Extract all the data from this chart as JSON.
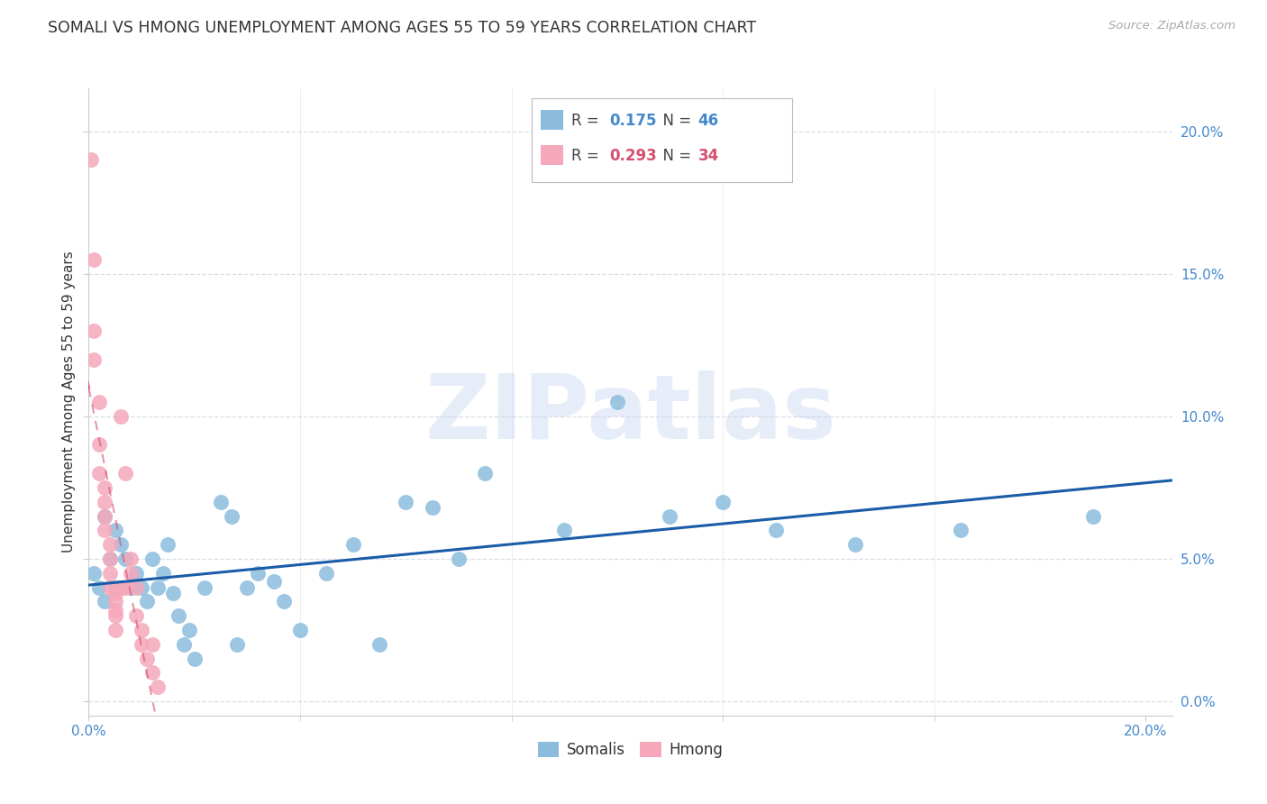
{
  "title": "SOMALI VS HMONG UNEMPLOYMENT AMONG AGES 55 TO 59 YEARS CORRELATION CHART",
  "source": "Source: ZipAtlas.com",
  "ylabel": "Unemployment Among Ages 55 to 59 years",
  "somali_R": 0.175,
  "somali_N": 46,
  "hmong_R": 0.293,
  "hmong_N": 34,
  "somali_color": "#8bbcdd",
  "hmong_color": "#f5a8ba",
  "trend_somali_color": "#1a5ca8",
  "trend_hmong_color": "#d45070",
  "xlim": [
    0.0,
    0.205
  ],
  "ylim": [
    -0.005,
    0.215
  ],
  "yticks": [
    0.0,
    0.05,
    0.1,
    0.15,
    0.2
  ],
  "somali_x": [
    0.001,
    0.002,
    0.003,
    0.003,
    0.004,
    0.005,
    0.005,
    0.006,
    0.007,
    0.008,
    0.009,
    0.01,
    0.011,
    0.012,
    0.013,
    0.014,
    0.015,
    0.016,
    0.017,
    0.018,
    0.019,
    0.02,
    0.022,
    0.025,
    0.027,
    0.028,
    0.03,
    0.032,
    0.035,
    0.037,
    0.04,
    0.045,
    0.05,
    0.055,
    0.06,
    0.065,
    0.07,
    0.075,
    0.09,
    0.1,
    0.11,
    0.12,
    0.13,
    0.145,
    0.165,
    0.19
  ],
  "somali_y": [
    0.045,
    0.04,
    0.065,
    0.035,
    0.05,
    0.04,
    0.06,
    0.055,
    0.05,
    0.04,
    0.045,
    0.04,
    0.035,
    0.05,
    0.04,
    0.045,
    0.055,
    0.038,
    0.03,
    0.02,
    0.025,
    0.015,
    0.04,
    0.07,
    0.065,
    0.02,
    0.04,
    0.045,
    0.042,
    0.035,
    0.025,
    0.045,
    0.055,
    0.02,
    0.07,
    0.068,
    0.05,
    0.08,
    0.06,
    0.105,
    0.065,
    0.07,
    0.06,
    0.055,
    0.06,
    0.065
  ],
  "hmong_x": [
    0.0005,
    0.001,
    0.001,
    0.001,
    0.002,
    0.002,
    0.002,
    0.003,
    0.003,
    0.003,
    0.003,
    0.004,
    0.004,
    0.004,
    0.004,
    0.005,
    0.005,
    0.005,
    0.005,
    0.005,
    0.006,
    0.006,
    0.007,
    0.007,
    0.008,
    0.008,
    0.009,
    0.009,
    0.01,
    0.01,
    0.011,
    0.012,
    0.012,
    0.013
  ],
  "hmong_y": [
    0.19,
    0.155,
    0.13,
    0.12,
    0.105,
    0.09,
    0.08,
    0.075,
    0.07,
    0.065,
    0.06,
    0.055,
    0.05,
    0.045,
    0.04,
    0.038,
    0.035,
    0.032,
    0.03,
    0.025,
    0.04,
    0.1,
    0.04,
    0.08,
    0.045,
    0.05,
    0.04,
    0.03,
    0.025,
    0.02,
    0.015,
    0.02,
    0.01,
    0.005
  ],
  "watermark": "ZIPatlas",
  "bg_color": "#ffffff",
  "grid_color": "#d8dde8",
  "tick_color": "#4488cc",
  "title_color": "#333333",
  "source_color": "#aaaaaa",
  "axis_color": "#cccccc"
}
